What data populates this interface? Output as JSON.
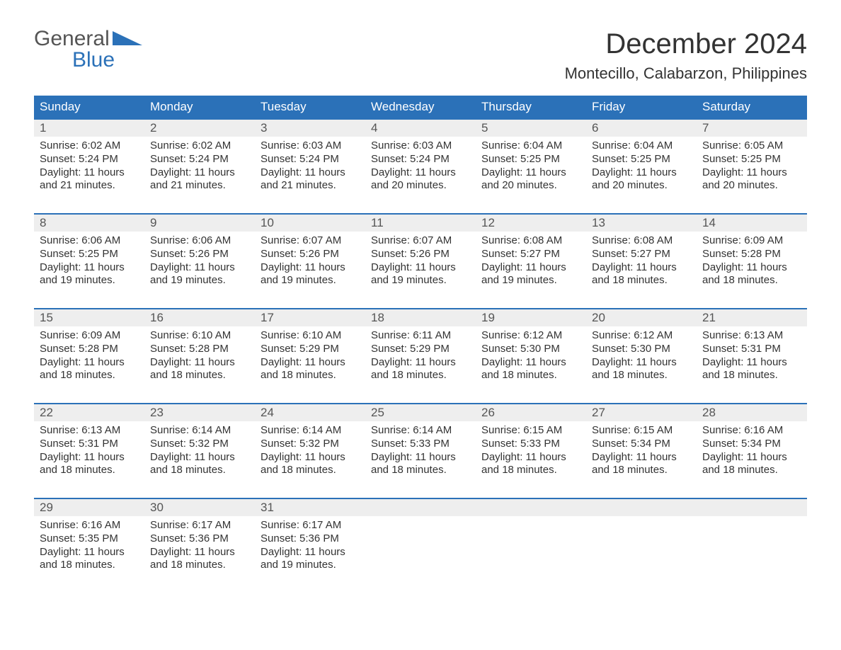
{
  "logo": {
    "line1": "General",
    "line2": "Blue",
    "triangle_color": "#2b71b8"
  },
  "title": "December 2024",
  "location": "Montecillo, Calabarzon, Philippines",
  "colors": {
    "header_bg": "#2b71b8",
    "header_fg": "#ffffff",
    "daynum_bg": "#eeeeee",
    "week_border": "#2b71b8",
    "text": "#333333",
    "muted": "#555555",
    "page_bg": "#ffffff"
  },
  "days_of_week": [
    "Sunday",
    "Monday",
    "Tuesday",
    "Wednesday",
    "Thursday",
    "Friday",
    "Saturday"
  ],
  "weeks": [
    [
      {
        "num": "1",
        "sunrise": "6:02 AM",
        "sunset": "5:24 PM",
        "daylight": "11 hours and 21 minutes."
      },
      {
        "num": "2",
        "sunrise": "6:02 AM",
        "sunset": "5:24 PM",
        "daylight": "11 hours and 21 minutes."
      },
      {
        "num": "3",
        "sunrise": "6:03 AM",
        "sunset": "5:24 PM",
        "daylight": "11 hours and 21 minutes."
      },
      {
        "num": "4",
        "sunrise": "6:03 AM",
        "sunset": "5:24 PM",
        "daylight": "11 hours and 20 minutes."
      },
      {
        "num": "5",
        "sunrise": "6:04 AM",
        "sunset": "5:25 PM",
        "daylight": "11 hours and 20 minutes."
      },
      {
        "num": "6",
        "sunrise": "6:04 AM",
        "sunset": "5:25 PM",
        "daylight": "11 hours and 20 minutes."
      },
      {
        "num": "7",
        "sunrise": "6:05 AM",
        "sunset": "5:25 PM",
        "daylight": "11 hours and 20 minutes."
      }
    ],
    [
      {
        "num": "8",
        "sunrise": "6:06 AM",
        "sunset": "5:25 PM",
        "daylight": "11 hours and 19 minutes."
      },
      {
        "num": "9",
        "sunrise": "6:06 AM",
        "sunset": "5:26 PM",
        "daylight": "11 hours and 19 minutes."
      },
      {
        "num": "10",
        "sunrise": "6:07 AM",
        "sunset": "5:26 PM",
        "daylight": "11 hours and 19 minutes."
      },
      {
        "num": "11",
        "sunrise": "6:07 AM",
        "sunset": "5:26 PM",
        "daylight": "11 hours and 19 minutes."
      },
      {
        "num": "12",
        "sunrise": "6:08 AM",
        "sunset": "5:27 PM",
        "daylight": "11 hours and 19 minutes."
      },
      {
        "num": "13",
        "sunrise": "6:08 AM",
        "sunset": "5:27 PM",
        "daylight": "11 hours and 18 minutes."
      },
      {
        "num": "14",
        "sunrise": "6:09 AM",
        "sunset": "5:28 PM",
        "daylight": "11 hours and 18 minutes."
      }
    ],
    [
      {
        "num": "15",
        "sunrise": "6:09 AM",
        "sunset": "5:28 PM",
        "daylight": "11 hours and 18 minutes."
      },
      {
        "num": "16",
        "sunrise": "6:10 AM",
        "sunset": "5:28 PM",
        "daylight": "11 hours and 18 minutes."
      },
      {
        "num": "17",
        "sunrise": "6:10 AM",
        "sunset": "5:29 PM",
        "daylight": "11 hours and 18 minutes."
      },
      {
        "num": "18",
        "sunrise": "6:11 AM",
        "sunset": "5:29 PM",
        "daylight": "11 hours and 18 minutes."
      },
      {
        "num": "19",
        "sunrise": "6:12 AM",
        "sunset": "5:30 PM",
        "daylight": "11 hours and 18 minutes."
      },
      {
        "num": "20",
        "sunrise": "6:12 AM",
        "sunset": "5:30 PM",
        "daylight": "11 hours and 18 minutes."
      },
      {
        "num": "21",
        "sunrise": "6:13 AM",
        "sunset": "5:31 PM",
        "daylight": "11 hours and 18 minutes."
      }
    ],
    [
      {
        "num": "22",
        "sunrise": "6:13 AM",
        "sunset": "5:31 PM",
        "daylight": "11 hours and 18 minutes."
      },
      {
        "num": "23",
        "sunrise": "6:14 AM",
        "sunset": "5:32 PM",
        "daylight": "11 hours and 18 minutes."
      },
      {
        "num": "24",
        "sunrise": "6:14 AM",
        "sunset": "5:32 PM",
        "daylight": "11 hours and 18 minutes."
      },
      {
        "num": "25",
        "sunrise": "6:14 AM",
        "sunset": "5:33 PM",
        "daylight": "11 hours and 18 minutes."
      },
      {
        "num": "26",
        "sunrise": "6:15 AM",
        "sunset": "5:33 PM",
        "daylight": "11 hours and 18 minutes."
      },
      {
        "num": "27",
        "sunrise": "6:15 AM",
        "sunset": "5:34 PM",
        "daylight": "11 hours and 18 minutes."
      },
      {
        "num": "28",
        "sunrise": "6:16 AM",
        "sunset": "5:34 PM",
        "daylight": "11 hours and 18 minutes."
      }
    ],
    [
      {
        "num": "29",
        "sunrise": "6:16 AM",
        "sunset": "5:35 PM",
        "daylight": "11 hours and 18 minutes."
      },
      {
        "num": "30",
        "sunrise": "6:17 AM",
        "sunset": "5:36 PM",
        "daylight": "11 hours and 18 minutes."
      },
      {
        "num": "31",
        "sunrise": "6:17 AM",
        "sunset": "5:36 PM",
        "daylight": "11 hours and 19 minutes."
      },
      null,
      null,
      null,
      null
    ]
  ],
  "labels": {
    "sunrise": "Sunrise:",
    "sunset": "Sunset:",
    "daylight": "Daylight:"
  }
}
